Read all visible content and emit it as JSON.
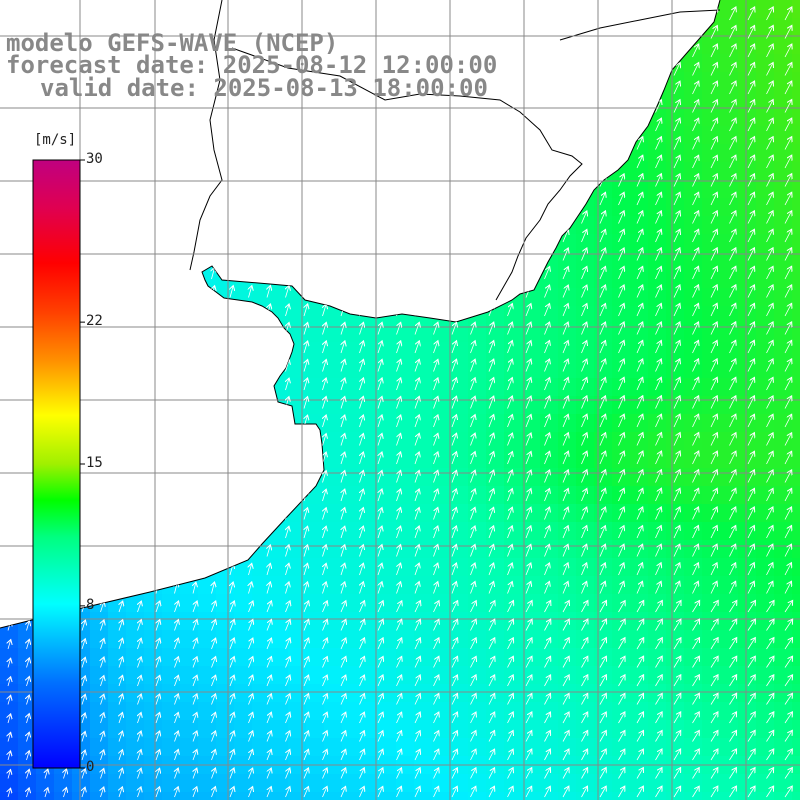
{
  "header": {
    "line1": "modelo GEFS-WAVE (NCEP)",
    "line2": "forecast date: 2025-08-12 12:00:00",
    "line3": "valid date: 2025-08-13 18:00:00"
  },
  "colorbar": {
    "unit": "[m/s]",
    "min": 0,
    "max": 30,
    "ticks": [
      "30",
      "22",
      "15",
      "8",
      "0"
    ],
    "tick_values": [
      30,
      22,
      15,
      8,
      0
    ],
    "colors": [
      "#0000ff",
      "#0070ff",
      "#00e0ff",
      "#00ffc0",
      "#00ff40",
      "#40e000",
      "#ffff00",
      "#ffa000",
      "#ff4000",
      "#ff0000",
      "#e00060",
      "#c00080"
    ]
  },
  "map": {
    "variable": "wind speed",
    "colors": {
      "land": "#ffffff",
      "coast": "#000000",
      "grid": "#888888",
      "arrow": "#ffffff"
    }
  }
}
